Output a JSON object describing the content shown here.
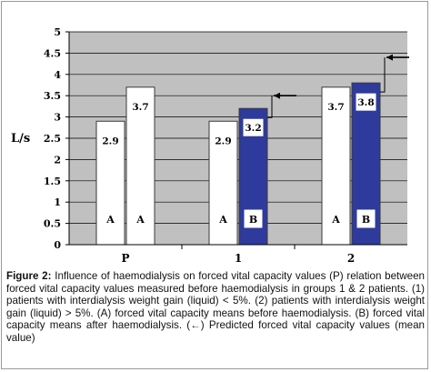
{
  "chart_data": {
    "type": "bar",
    "ylabel": "L/s",
    "ylim": [
      0,
      5
    ],
    "yticks": [
      "0",
      "0.5",
      "1",
      "1.5",
      "2",
      "2.5",
      "3",
      "3.5",
      "4",
      "4.5",
      "5"
    ],
    "categories": [
      "P",
      "1",
      "2"
    ],
    "grid": true,
    "plot_background": "#c0c0c0",
    "colors": {
      "A": "#ffffff",
      "B": "#2e3a9c",
      "border": "#3a3a3a"
    },
    "bars": [
      {
        "category": "P",
        "group": "A",
        "value": 2.9,
        "value_label": "2.9",
        "letter": "A"
      },
      {
        "category": "P",
        "group": "A",
        "value": 3.7,
        "value_label": "3.7",
        "letter": "A"
      },
      {
        "category": "1",
        "group": "A",
        "value": 2.9,
        "value_label": "2.9",
        "letter": "A"
      },
      {
        "category": "1",
        "group": "B",
        "value": 3.2,
        "value_label": "3.2",
        "letter": "B"
      },
      {
        "category": "2",
        "group": "A",
        "value": 3.7,
        "value_label": "3.7",
        "letter": "A"
      },
      {
        "category": "2",
        "group": "B",
        "value": 3.8,
        "value_label": "3.8",
        "letter": "B"
      }
    ],
    "predicted_markers": [
      {
        "category": "1",
        "value": 3.5
      },
      {
        "category": "2",
        "value": 4.4
      }
    ]
  },
  "caption": {
    "label": "Figure 2:",
    "text": "Influence of haemodialysis on forced vital capacity values (P) relation between forced vital capacity values measured before haemodialysis in groups 1 & 2 patients. (1) patients with interdialysis weight gain (liquid) < 5%. (2) patients with interdialysis weight gain (liquid) > 5%. (A) forced vital capacity means before haemodialysis. (B) forced vital capacity means after haemodialysis. (←) Predicted forced vital capacity values (mean value)"
  }
}
